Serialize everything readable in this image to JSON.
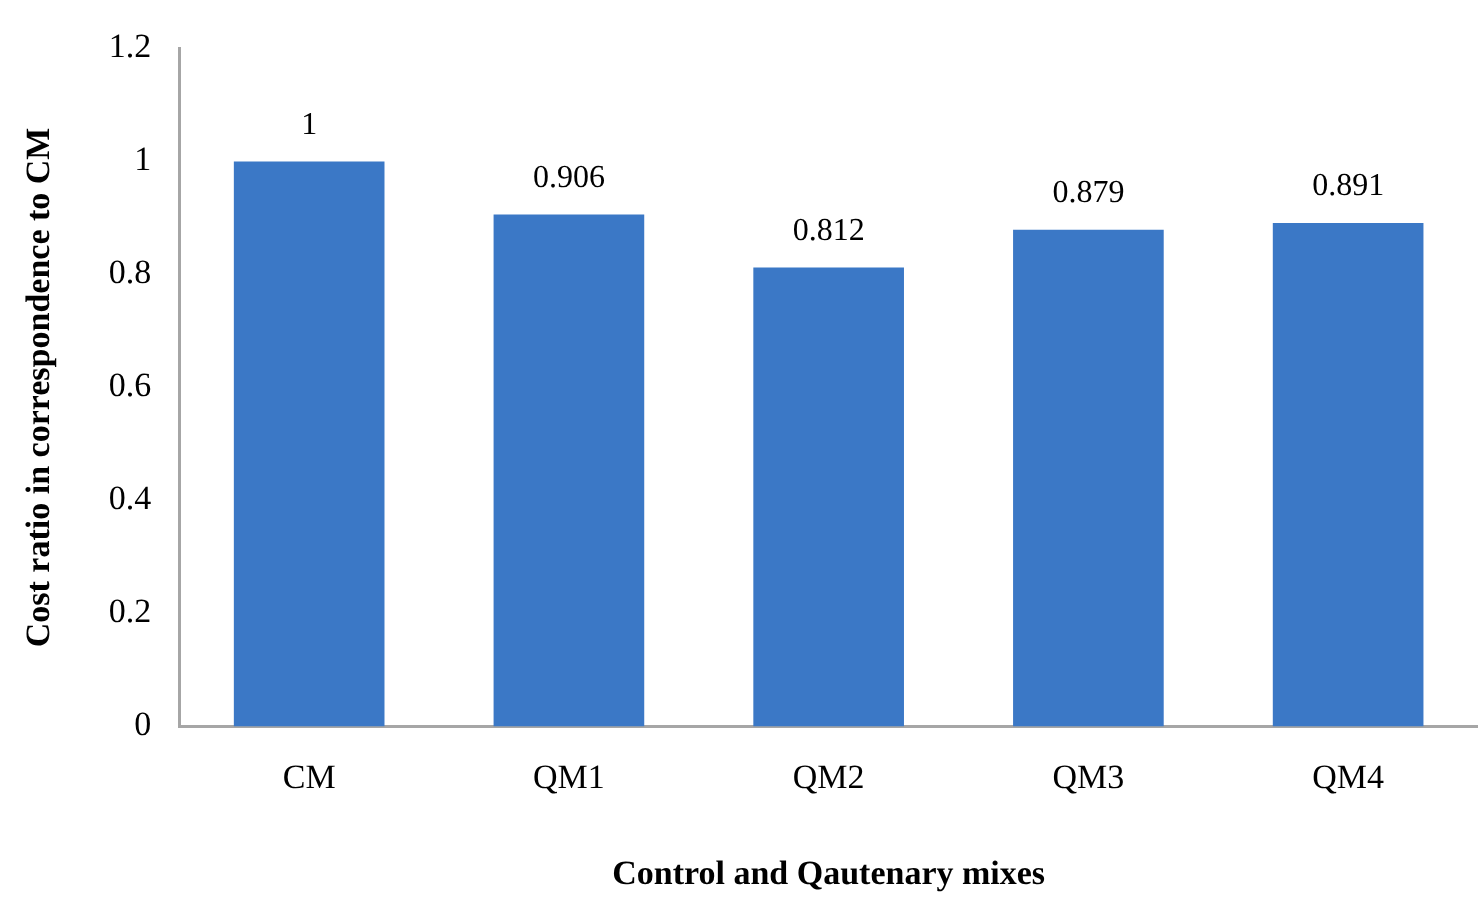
{
  "chart_data": {
    "type": "bar",
    "xlabel": "Control and Qautenary mixes",
    "ylabel": "Cost ratio in correspondence to CM",
    "categories": [
      "CM",
      "QM1",
      "QM2",
      "QM3",
      "QM4"
    ],
    "values": [
      1,
      0.906,
      0.812,
      0.879,
      0.891
    ],
    "color": "#3b78c6",
    "ylim": [
      0,
      1.2
    ],
    "yticks": [
      0,
      0.2,
      0.4,
      0.6,
      0.8,
      1,
      1.2
    ],
    "data_labels": true
  }
}
